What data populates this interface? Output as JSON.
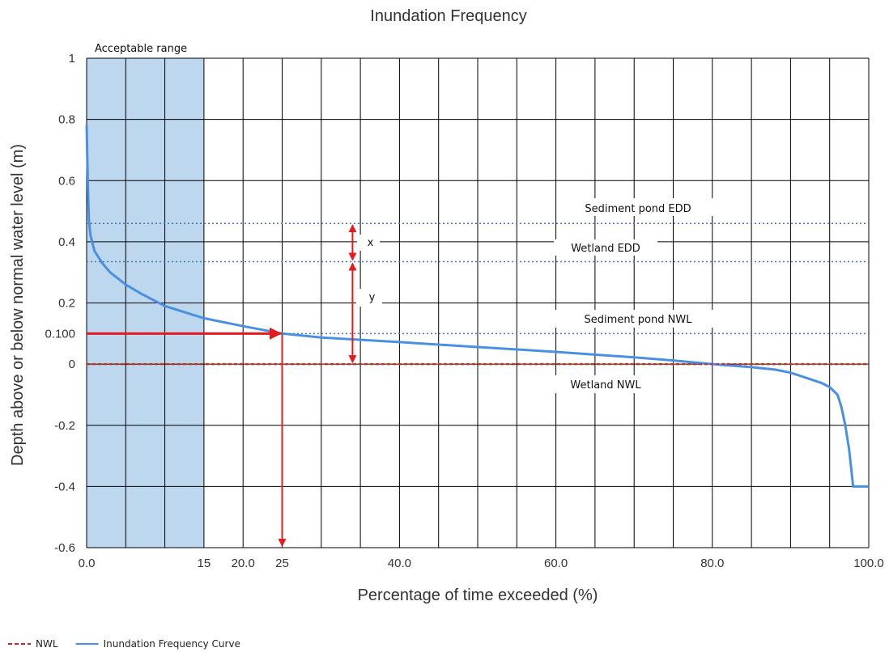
{
  "chart_data": {
    "type": "line",
    "title": "Inundation Frequency",
    "xlabel": "Percentage of time exceeded (%)",
    "ylabel": "Depth above or below normal water level (m)",
    "xlim": [
      0,
      100
    ],
    "ylim": [
      -0.6,
      1
    ],
    "grid": true,
    "x_ticks": [
      {
        "value": 0,
        "label": "0.0"
      },
      {
        "value": 15,
        "label": "15"
      },
      {
        "value": 20,
        "label": "20.0"
      },
      {
        "value": 25,
        "label": "25"
      },
      {
        "value": 40,
        "label": "40.0"
      },
      {
        "value": 60,
        "label": "60.0"
      },
      {
        "value": 80,
        "label": "80.0"
      },
      {
        "value": 100,
        "label": "100.0"
      }
    ],
    "y_ticks": [
      {
        "value": 1,
        "label": "1"
      },
      {
        "value": 0.8,
        "label": "0.8"
      },
      {
        "value": 0.6,
        "label": "0.6"
      },
      {
        "value": 0.4,
        "label": "0.4"
      },
      {
        "value": 0.2,
        "label": "0.2"
      },
      {
        "value": 0.1,
        "label": "0.100"
      },
      {
        "value": 0,
        "label": "0"
      },
      {
        "value": -0.2,
        "label": "-0.2"
      },
      {
        "value": -0.4,
        "label": "-0.4"
      },
      {
        "value": -0.6,
        "label": "-0.6"
      }
    ],
    "series": [
      {
        "name": "Inundation Frequency Curve",
        "color": "#4a90e2",
        "x": [
          0,
          0.1,
          0.2,
          0.3,
          0.5,
          1,
          2,
          3,
          5,
          7,
          10,
          15,
          20,
          25,
          30,
          40,
          50,
          60,
          70,
          75,
          80,
          85,
          88,
          90,
          92,
          94,
          95,
          96,
          96.5,
          97,
          97.5,
          98,
          99,
          100
        ],
        "y": [
          0.78,
          0.65,
          0.55,
          0.47,
          0.42,
          0.37,
          0.33,
          0.3,
          0.26,
          0.23,
          0.19,
          0.15,
          0.124,
          0.1,
          0.087,
          0.072,
          0.056,
          0.04,
          0.022,
          0.012,
          0.0,
          -0.01,
          -0.018,
          -0.028,
          -0.045,
          -0.062,
          -0.075,
          -0.1,
          -0.14,
          -0.2,
          -0.28,
          -0.4,
          -0.4,
          -0.4
        ]
      },
      {
        "name": "NWL",
        "color": "#d62020",
        "x": [
          0,
          100
        ],
        "y": [
          0,
          0
        ]
      }
    ],
    "shaded_ranges": [
      {
        "label": "Acceptable range",
        "x": [
          0,
          15
        ],
        "color": "#bdd7ee"
      }
    ],
    "reference_lines": [
      {
        "label": "Sediment pond EDD",
        "y": 0.46,
        "color": "#4472c4"
      },
      {
        "label": "Wetland EDD",
        "y": 0.335,
        "color": "#4472c4"
      },
      {
        "label": "Sediment pond NWL",
        "y": 0.1,
        "color": "#4472c4"
      },
      {
        "label": "Wetland NWL",
        "y": 0.0,
        "color": "#c55a11"
      }
    ],
    "annotations": {
      "readoff": {
        "x": 25,
        "y": 0.1,
        "color": "#e41a1c"
      },
      "x_marker": {
        "label": "x",
        "x": 34,
        "y_from": 0.335,
        "y_to": 0.46
      },
      "y_marker": {
        "label": "y",
        "x": 34,
        "y_from": 0.0,
        "y_to": 0.335
      }
    },
    "legend": [
      {
        "label": "NWL",
        "style": "dashed",
        "color": "#d62020"
      },
      {
        "label": "Inundation Frequency Curve",
        "style": "solid",
        "color": "#4a90e2"
      }
    ],
    "legend_position": "bottom-left"
  }
}
